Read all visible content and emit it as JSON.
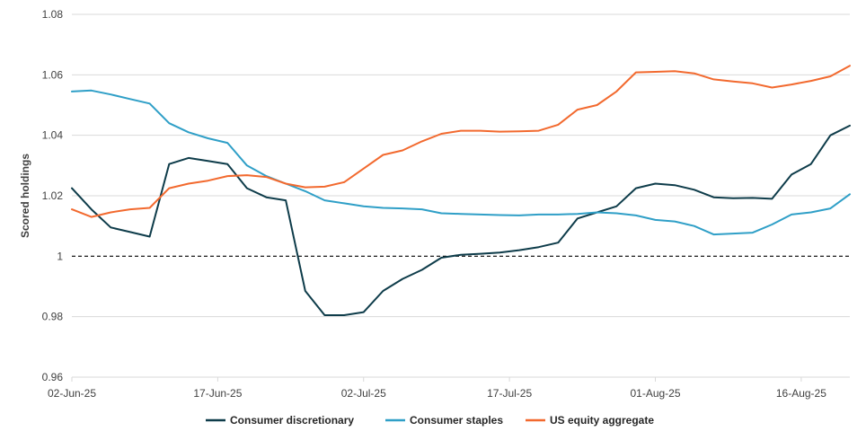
{
  "chart_data": {
    "type": "line",
    "title": "",
    "xlabel": "",
    "ylabel": "Scored holdings",
    "ylim": [
      0.96,
      1.08
    ],
    "yticks": [
      0.96,
      0.98,
      1,
      1.02,
      1.04,
      1.06,
      1.08
    ],
    "ytick_labels": [
      "0.96",
      "0.98",
      "1",
      "1.02",
      "1.04",
      "1.06",
      "1.08"
    ],
    "x_day_range": [
      0,
      80
    ],
    "xticks": [
      0,
      15,
      30,
      45,
      60,
      75
    ],
    "xtick_labels": [
      "02-Jun-25",
      "17-Jun-25",
      "02-Jul-25",
      "17-Jul-25",
      "01-Aug-25",
      "16-Aug-25"
    ],
    "reference_line": {
      "value": 1,
      "style": "dashed",
      "color": "#000000"
    },
    "legend_position": "bottom-center",
    "series": [
      {
        "name": "Consumer discretionary",
        "color": "#0e3c4a",
        "x": [
          0,
          2,
          4,
          6,
          8,
          10,
          12,
          14,
          16,
          18,
          20,
          22,
          24,
          26,
          28,
          30,
          32,
          34,
          36,
          38,
          40,
          42,
          44,
          46,
          48,
          50,
          52,
          54,
          56,
          58,
          60,
          62,
          64,
          66,
          68,
          70,
          72,
          74,
          76,
          78,
          80
        ],
        "y": [
          1.0225,
          1.0155,
          1.0095,
          1.008,
          1.0065,
          1.0305,
          1.0325,
          1.0315,
          1.0305,
          1.0225,
          1.0195,
          1.0185,
          0.9885,
          0.9805,
          0.9805,
          0.9815,
          0.9885,
          0.9925,
          0.9955,
          0.9995,
          1.0005,
          1.0008,
          1.0012,
          1.002,
          1.003,
          1.0045,
          1.0125,
          1.0145,
          1.0165,
          1.0225,
          1.024,
          1.0235,
          1.022,
          1.0195,
          1.0192,
          1.0193,
          1.019,
          1.027,
          1.0305,
          1.04,
          1.0432
        ]
      },
      {
        "name": "Consumer staples",
        "color": "#2f9fc7",
        "x": [
          0,
          2,
          4,
          6,
          8,
          10,
          12,
          14,
          16,
          18,
          20,
          22,
          24,
          26,
          28,
          30,
          32,
          34,
          36,
          38,
          40,
          42,
          44,
          46,
          48,
          50,
          52,
          54,
          56,
          58,
          60,
          62,
          64,
          66,
          68,
          70,
          72,
          74,
          76,
          78,
          80
        ],
        "y": [
          1.0545,
          1.0548,
          1.0535,
          1.052,
          1.0505,
          1.044,
          1.041,
          1.039,
          1.0375,
          1.03,
          1.0265,
          1.024,
          1.0215,
          1.0185,
          1.0175,
          1.0165,
          1.016,
          1.0158,
          1.0155,
          1.0142,
          1.014,
          1.0138,
          1.0136,
          1.0135,
          1.0138,
          1.0138,
          1.014,
          1.0145,
          1.0142,
          1.0135,
          1.012,
          1.0115,
          1.01,
          1.0072,
          1.0075,
          1.0078,
          1.0105,
          1.0138,
          1.0145,
          1.0158,
          1.0205
        ]
      },
      {
        "name": "US equity aggregate",
        "color": "#f2692e",
        "x": [
          0,
          2,
          4,
          6,
          8,
          10,
          12,
          14,
          16,
          18,
          20,
          22,
          24,
          26,
          28,
          30,
          32,
          34,
          36,
          38,
          40,
          42,
          44,
          46,
          48,
          50,
          52,
          54,
          56,
          58,
          60,
          62,
          64,
          66,
          68,
          70,
          72,
          74,
          76,
          78,
          80
        ],
        "y": [
          1.0155,
          1.013,
          1.0145,
          1.0155,
          1.016,
          1.0225,
          1.024,
          1.025,
          1.0265,
          1.0268,
          1.0262,
          1.024,
          1.0228,
          1.023,
          1.0245,
          1.029,
          1.0335,
          1.035,
          1.038,
          1.0405,
          1.0415,
          1.0415,
          1.0412,
          1.0413,
          1.0415,
          1.0435,
          1.0485,
          1.05,
          1.0545,
          1.0608,
          1.061,
          1.0612,
          1.0605,
          1.0585,
          1.0578,
          1.0572,
          1.0558,
          1.0568,
          1.058,
          1.0595,
          1.063
        ]
      }
    ]
  }
}
